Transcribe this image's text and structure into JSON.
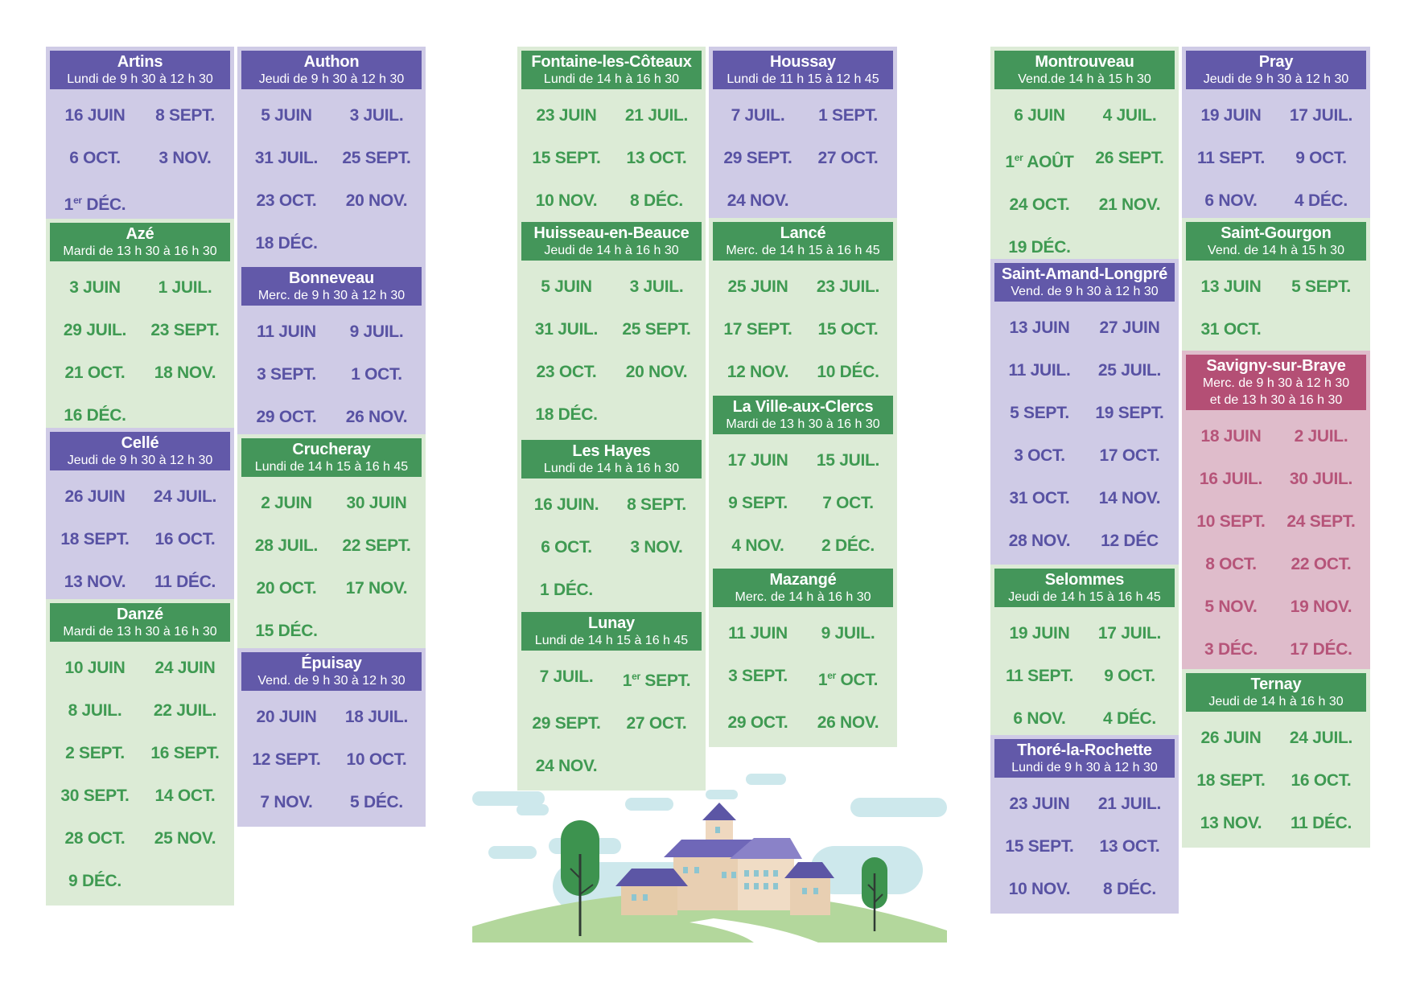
{
  "communes": [
    {
      "id": "artins",
      "name": "Artins",
      "schedule": "Lundi de 9 h 30 à 12 h 30",
      "theme": "purple",
      "dates": [
        "16 JUIN",
        "8 SEPT.",
        "6 OCT.",
        "3 NOV.",
        "1er DÉC."
      ]
    },
    {
      "id": "aze",
      "name": "Azé",
      "schedule": "Mardi de 13 h 30 à 16 h 30",
      "theme": "green",
      "dates": [
        "3 JUIN",
        "1 JUIL.",
        "29 JUIL.",
        "23 SEPT.",
        "21 OCT.",
        "18 NOV.",
        "16 DÉC."
      ]
    },
    {
      "id": "celle",
      "name": "Cellé",
      "schedule": "Jeudi de 9 h 30 à 12 h 30",
      "theme": "purple",
      "dates": [
        "26 JUIN",
        "24 JUIL.",
        "18 SEPT.",
        "16 OCT.",
        "13 NOV.",
        "11 DÉC."
      ]
    },
    {
      "id": "danze",
      "name": "Danzé",
      "schedule": "Mardi de 13 h 30 à 16 h 30",
      "theme": "green",
      "dates": [
        "10 JUIN",
        "24 JUIN",
        "8 JUIL.",
        "22 JUIL.",
        "2 SEPT.",
        "16 SEPT.",
        "30 SEPT.",
        "14 OCT.",
        "28 OCT.",
        "25 NOV.",
        "9 DÉC."
      ]
    },
    {
      "id": "authon",
      "name": "Authon",
      "schedule": "Jeudi de 9 h 30 à 12 h 30",
      "theme": "purple",
      "dates": [
        "5 JUIN",
        "3 JUIL.",
        "31 JUIL.",
        "25 SEPT.",
        "23 OCT.",
        "20 NOV.",
        "18 DÉC."
      ]
    },
    {
      "id": "bonneveau",
      "name": "Bonneveau",
      "schedule": "Merc. de 9 h 30 à 12 h 30",
      "theme": "purple",
      "dates": [
        "11 JUIN",
        "9 JUIL.",
        "3 SEPT.",
        "1 OCT.",
        "29 OCT.",
        "26 NOV."
      ]
    },
    {
      "id": "crucheray",
      "name": "Crucheray",
      "schedule": "Lundi de 14 h 15 à 16 h 45",
      "theme": "green",
      "dates": [
        "2 JUIN",
        "30 JUIN",
        "28 JUIL.",
        "22 SEPT.",
        "20 OCT.",
        "17 NOV.",
        "15 DÉC."
      ]
    },
    {
      "id": "epuisay",
      "name": "Épuisay",
      "schedule": "Vend. de 9 h 30 à 12 h 30",
      "theme": "purple",
      "dates": [
        "20 JUIN",
        "18 JUIL.",
        "12 SEPT.",
        "10 OCT.",
        "7 NOV.",
        "5 DÉC."
      ]
    },
    {
      "id": "fontaine",
      "name": "Fontaine-les-Côteaux",
      "schedule": "Lundi de 14 h à 16 h 30",
      "theme": "green",
      "dates": [
        "23 JUIN",
        "21 JUIL.",
        "15 SEPT.",
        "13 OCT.",
        "10 NOV.",
        "8 DÉC."
      ]
    },
    {
      "id": "huisseau",
      "name": "Huisseau-en-Beauce",
      "schedule": "Jeudi de 14 h à 16 h 30",
      "theme": "green",
      "dates": [
        "5 JUIN",
        "3 JUIL.",
        "31 JUIL.",
        "25 SEPT.",
        "23 OCT.",
        "20 NOV.",
        "18 DÉC."
      ]
    },
    {
      "id": "leshayes",
      "name": "Les Hayes",
      "schedule": "Lundi de 14 h à 16 h 30",
      "theme": "green",
      "dates": [
        "16 JUIN.",
        "8 SEPT.",
        "6 OCT.",
        "3 NOV.",
        "1 DÉC."
      ]
    },
    {
      "id": "lunay",
      "name": "Lunay",
      "schedule": "Lundi de 14 h 15 à 16 h 45",
      "theme": "green",
      "dates": [
        "7 JUIL.",
        "1er SEPT.",
        "29 SEPT.",
        "27 OCT.",
        "24 NOV."
      ]
    },
    {
      "id": "houssay",
      "name": "Houssay",
      "schedule": "Lundi de 11 h 15 à 12 h 45",
      "theme": "purple",
      "dates": [
        "7 JUIL.",
        "1 SEPT.",
        "29 SEPT.",
        "27 OCT.",
        "24 NOV."
      ]
    },
    {
      "id": "lance",
      "name": "Lancé",
      "schedule": "Merc. de 14 h 15 à 16 h 45",
      "theme": "green",
      "dates": [
        "25 JUIN",
        "23 JUIL.",
        "17 SEPT.",
        "15 OCT.",
        "12 NOV.",
        "10 DÉC."
      ]
    },
    {
      "id": "villeauxclercs",
      "name": "La Ville-aux-Clercs",
      "schedule": "Mardi de 13 h 30 à 16 h 30",
      "theme": "green",
      "dates": [
        "17 JUIN",
        "15 JUIL.",
        "9 SEPT.",
        "7 OCT.",
        "4 NOV.",
        "2 DÉC."
      ]
    },
    {
      "id": "mazange",
      "name": "Mazangé",
      "schedule": "Merc. de 14 h à 16 h 30",
      "theme": "green",
      "dates": [
        "11 JUIN",
        "9 JUIL.",
        "3 SEPT.",
        "1er OCT.",
        "29 OCT.",
        "26 NOV."
      ]
    },
    {
      "id": "montrouveau",
      "name": "Montrouveau",
      "schedule": "Vend.de 14 h à 15 h 30",
      "theme": "green",
      "dates": [
        "6 JUIN",
        "4 JUIL.",
        "1er AOÛT",
        "26 SEPT.",
        "24 OCT.",
        "21 NOV.",
        "19 DÉC."
      ]
    },
    {
      "id": "saintamand",
      "name": "Saint-Amand-Longpré",
      "schedule": "Vend. de 9 h 30 à 12 h 30",
      "theme": "purple",
      "dates": [
        "13 JUIN",
        "27 JUIN",
        "11 JUIL.",
        "25 JUIL.",
        "5 SEPT.",
        "19 SEPT.",
        "3 OCT.",
        "17 OCT.",
        "31 OCT.",
        "14 NOV.",
        "28 NOV.",
        "12 DÉC"
      ]
    },
    {
      "id": "selommes",
      "name": "Selommes",
      "schedule": "Jeudi de 14 h 15 à 16 h 45",
      "theme": "green",
      "dates": [
        "19 JUIN",
        "17 JUIL.",
        "11 SEPT.",
        "9 OCT.",
        "6 NOV.",
        "4 DÉC."
      ]
    },
    {
      "id": "thore",
      "name": "Thoré-la-Rochette",
      "schedule": "Lundi de 9 h 30 à 12 h 30",
      "theme": "purple",
      "dates": [
        "23 JUIN",
        "21 JUIL.",
        "15 SEPT.",
        "13 OCT.",
        "10 NOV.",
        "8 DÉC."
      ]
    },
    {
      "id": "pray",
      "name": "Pray",
      "schedule": "Jeudi de 9 h 30 à 12 h 30",
      "theme": "purple",
      "dates": [
        "19 JUIN",
        "17 JUIL.",
        "11 SEPT.",
        "9 OCT.",
        "6 NOV.",
        "4 DÉC."
      ]
    },
    {
      "id": "saintgourgon",
      "name": "Saint-Gourgon",
      "schedule": "Vend. de 14 h à 15 h 30",
      "theme": "green",
      "dates": [
        "13 JUIN",
        "5 SEPT.",
        "31 OCT."
      ]
    },
    {
      "id": "savigny",
      "name": "Savigny-sur-Braye",
      "schedule": "Merc. de 9 h 30 à 12 h 30\net de 13 h 30 à 16 h 30",
      "theme": "pink",
      "dates": [
        "18 JUIN",
        "2 JUIL.",
        "16 JUIL.",
        "30 JUIL.",
        "10 SEPT.",
        "24 SEPT.",
        "8 OCT.",
        "22 OCT.",
        "5 NOV.",
        "19 NOV.",
        "3 DÉC.",
        "17 DÉC."
      ]
    },
    {
      "id": "ternay",
      "name": "Ternay",
      "schedule": "Jeudi de 14 h à 16 h 30",
      "theme": "green",
      "dates": [
        "26 JUIN",
        "24 JUIL.",
        "18 SEPT.",
        "16 OCT.",
        "13 NOV.",
        "11 DÉC."
      ]
    }
  ],
  "illustration": {
    "description_icon": "village-on-hill-icon"
  }
}
